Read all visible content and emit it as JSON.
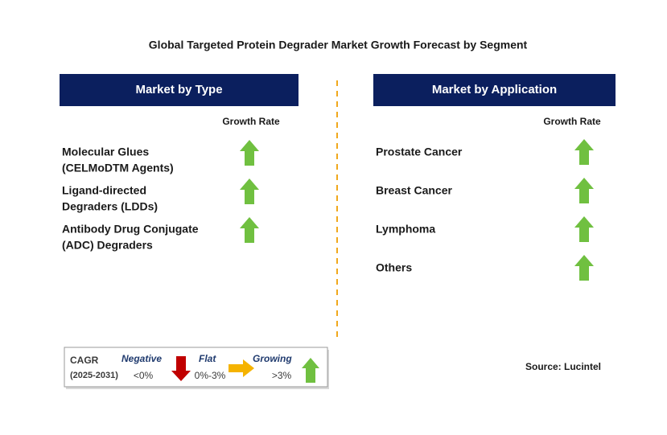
{
  "title": "Global Targeted Protein Degrader Market Growth Forecast by Segment",
  "panels": [
    {
      "header": "Market by Type",
      "column_label": "Growth Rate",
      "items": [
        [
          "Molecular Glues",
          "(CELMoDTM Agents)"
        ],
        [
          "Ligand-directed",
          "Degraders (LDDs)"
        ],
        [
          "Antibody Drug Conjugate",
          "(ADC) Degraders"
        ]
      ]
    },
    {
      "header": "Market by Application",
      "column_label": "Growth Rate",
      "items": [
        [
          "Prostate Cancer"
        ],
        [
          "Breast Cancer"
        ],
        [
          "Lymphoma"
        ],
        [
          "Others"
        ]
      ]
    }
  ],
  "legend": {
    "title": "CAGR",
    "period": "(2025-2031)",
    "negative": {
      "label": "Negative",
      "range": "<0%"
    },
    "flat": {
      "label": "Flat",
      "range": "0%-3%"
    },
    "growing": {
      "label": "Growing",
      "range": ">3%"
    }
  },
  "source": "Source: Lucintel"
}
